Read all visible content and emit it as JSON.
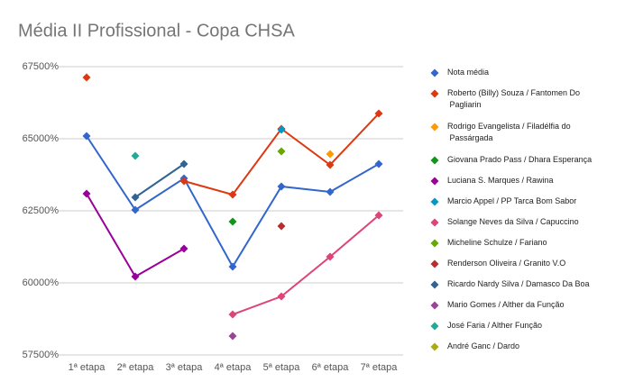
{
  "chart_data": {
    "type": "line",
    "title": "Média II Profissional - Copa CHSA",
    "categories": [
      "1ª etapa",
      "2ª etapa",
      "3ª etapa",
      "4ª etapa",
      "5ª etapa",
      "6ª etapa",
      "7ª etapa"
    ],
    "ylim": [
      57500,
      67500
    ],
    "yticks": [
      {
        "value": 57500,
        "label": "57500%"
      },
      {
        "value": 60000,
        "label": "60000%"
      },
      {
        "value": 62500,
        "label": "62500%"
      },
      {
        "value": 65000,
        "label": "65000%"
      },
      {
        "value": 67500,
        "label": "67500%"
      }
    ],
    "grid": true,
    "legend": "right",
    "series": [
      {
        "name": "Nota média",
        "color": "#3366cc",
        "values": [
          65094,
          62531,
          63625,
          60563,
          63344,
          63156,
          64125
        ]
      },
      {
        "name": "Roberto (Billy) Souza / Fantomen Do Pagliarin",
        "color": "#dc3912",
        "values": [
          67125,
          null,
          63531,
          63063,
          65344,
          64094,
          65875
        ]
      },
      {
        "name": "Rodrigo Evangelista / Filadélfia do Passárgada",
        "color": "#ff9900",
        "values": [
          null,
          null,
          null,
          null,
          null,
          64469,
          null
        ]
      },
      {
        "name": "Giovana Prado Pass / Dhara Esperança",
        "color": "#109618",
        "values": [
          null,
          null,
          null,
          62125,
          null,
          null,
          null
        ]
      },
      {
        "name": "Luciana S. Marques / Rawina",
        "color": "#990099",
        "values": [
          63094,
          60219,
          61188,
          null,
          null,
          null,
          null
        ]
      },
      {
        "name": "Marcio Appel / PP Tarca Bom Sabor",
        "color": "#0099c6",
        "values": [
          null,
          null,
          null,
          null,
          65313,
          null,
          null
        ]
      },
      {
        "name": "Solange Neves da Silva / Capuccino",
        "color": "#dd4477",
        "values": [
          null,
          null,
          null,
          58906,
          59531,
          60906,
          62344
        ]
      },
      {
        "name": "Micheline Schulze / Fariano",
        "color": "#66aa00",
        "values": [
          null,
          null,
          null,
          null,
          64563,
          null,
          null
        ]
      },
      {
        "name": "Renderson Oliveira / Granito V.O",
        "color": "#b82e2e",
        "values": [
          null,
          null,
          null,
          null,
          61969,
          null,
          null
        ]
      },
      {
        "name": "Ricardo Nardy Silva / Damasco Da Boa",
        "color": "#316395",
        "values": [
          null,
          62969,
          64125,
          null,
          null,
          null,
          null
        ]
      },
      {
        "name": "Mario Gomes / Alther da Função",
        "color": "#994499",
        "values": [
          null,
          null,
          null,
          58156,
          null,
          null,
          null
        ]
      },
      {
        "name": "José Faria / Alther Função",
        "color": "#22aa99",
        "values": [
          null,
          64406,
          null,
          null,
          null,
          null,
          null
        ]
      },
      {
        "name": "André Ganc / Dardo",
        "color": "#aaaa11",
        "values": [
          null,
          null,
          null,
          null,
          null,
          null,
          null
        ]
      }
    ]
  }
}
